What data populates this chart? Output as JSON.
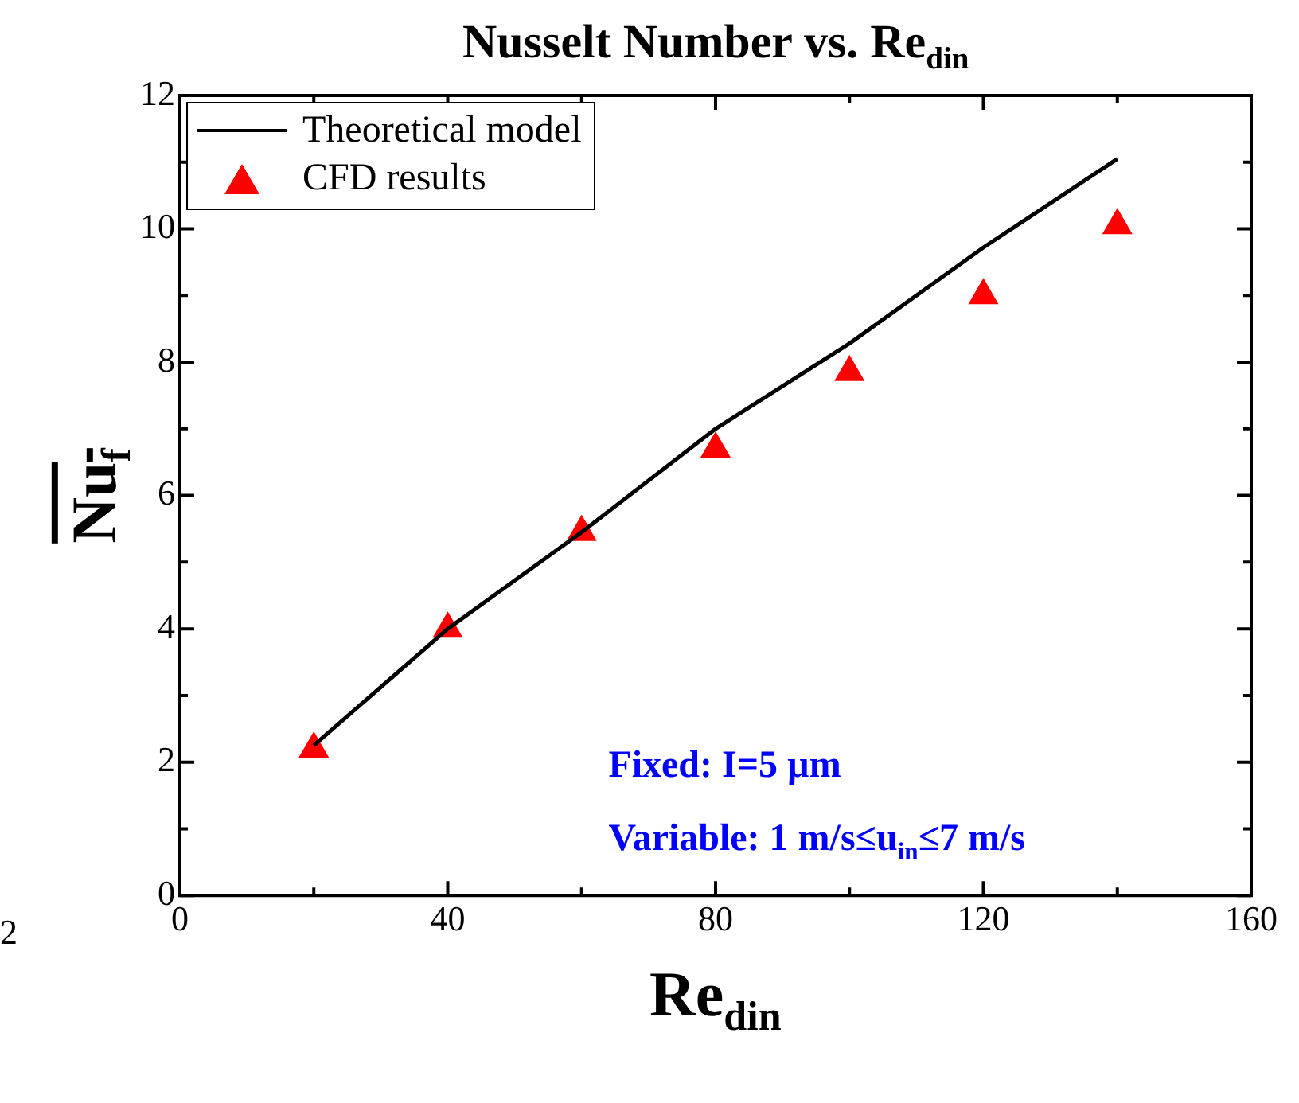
{
  "chart_data": {
    "type": "line",
    "title": "Nusselt Number vs. Re$_{din}$",
    "xlabel": "Re$_{din}$",
    "ylabel": "Nu$_{f}$",
    "x": [
      20,
      40,
      60,
      80,
      100,
      120,
      140
    ],
    "xlim": [
      0,
      160
    ],
    "xticks": [
      0,
      {
        "value": 20,
        "label": null
      },
      40,
      {
        "value": 60,
        "label": null
      },
      80,
      {
        "value": 100,
        "label": null
      },
      120,
      {
        "value": 140,
        "label": null
      },
      160
    ],
    "ylim": [
      0,
      12
    ],
    "yticks": [
      0,
      {
        "value": 1,
        "label": null
      },
      2,
      {
        "value": 3,
        "label": null
      },
      4,
      {
        "value": 5,
        "label": null
      },
      6,
      {
        "value": 7,
        "label": null
      },
      8,
      {
        "value": 9,
        "label": null
      },
      10,
      {
        "value": 11,
        "label": null
      },
      12
    ],
    "series": [
      {
        "name": "Theoretical model",
        "color": "#000000",
        "marker": "none",
        "line_style": "solid",
        "values": [
          2.25,
          4.0,
          5.45,
          7.0,
          8.28,
          9.72,
          11.05
        ]
      },
      {
        "name": "CFD results",
        "type": "scatter",
        "color": "#ff0000",
        "marker": "triangle",
        "values": [
          2.2,
          4.0,
          5.45,
          6.7,
          7.85,
          9.0,
          10.05
        ]
      }
    ],
    "legend": "top left",
    "grid": false,
    "annotations": [
      "Fixed: I=5 µm",
      "Variable: 1 m/s≤u$_{in}$≤7 m/s",
      "2"
    ]
  }
}
